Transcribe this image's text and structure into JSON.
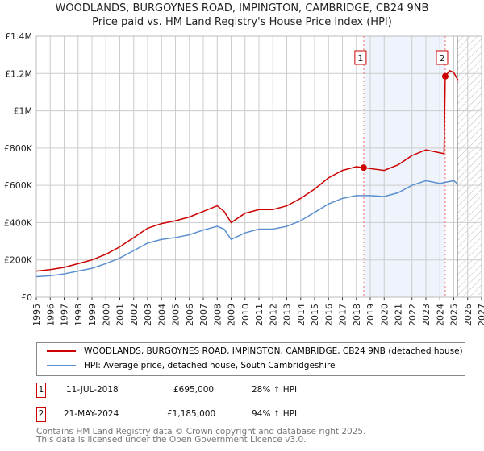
{
  "chart_data": {
    "type": "line",
    "title": "WOODLANDS, BURGOYNES ROAD, IMPINGTON, CAMBRIDGE, CB24 9NB",
    "subtitle": "Price paid vs. HM Land Registry's House Price Index (HPI)",
    "xlim": [
      1995,
      2027
    ],
    "ylim": [
      0,
      1400000
    ],
    "x_ticks": [
      "1995",
      "1996",
      "1997",
      "1998",
      "1999",
      "2000",
      "2001",
      "2002",
      "2003",
      "2004",
      "2005",
      "2006",
      "2007",
      "2008",
      "2009",
      "2010",
      "2011",
      "2012",
      "2013",
      "2014",
      "2015",
      "2016",
      "2017",
      "2018",
      "2019",
      "2020",
      "2021",
      "2022",
      "2023",
      "2024",
      "2025",
      "2026",
      "2027"
    ],
    "y_ticks": [
      {
        "v": 0,
        "label": "£0"
      },
      {
        "v": 200000,
        "label": "£200K"
      },
      {
        "v": 400000,
        "label": "£400K"
      },
      {
        "v": 600000,
        "label": "£600K"
      },
      {
        "v": 800000,
        "label": "£800K"
      },
      {
        "v": 1000000,
        "label": "£1M"
      },
      {
        "v": 1200000,
        "label": "£1.2M"
      },
      {
        "v": 1400000,
        "label": "£1.4M"
      }
    ],
    "grid": true,
    "series": [
      {
        "name": "WOODLANDS, BURGOYNES ROAD, IMPINGTON, CAMBRIDGE, CB24 9NB (detached house)",
        "color": "#cc0000",
        "x": [
          1995,
          1996,
          1997,
          1998,
          1999,
          2000,
          2001,
          2002,
          2003,
          2004,
          2005,
          2006,
          2007,
          2008,
          2008.5,
          2009,
          2010,
          2011,
          2012,
          2013,
          2014,
          2015,
          2016,
          2017,
          2018,
          2018.53,
          2019,
          2020,
          2021,
          2022,
          2023,
          2024.3,
          2024.39,
          2024.7,
          2025,
          2025.3
        ],
        "y": [
          140000,
          148000,
          160000,
          180000,
          200000,
          230000,
          270000,
          320000,
          370000,
          395000,
          410000,
          430000,
          460000,
          490000,
          460000,
          400000,
          450000,
          470000,
          470000,
          490000,
          530000,
          580000,
          640000,
          680000,
          700000,
          695000,
          690000,
          680000,
          710000,
          760000,
          790000,
          770000,
          1185000,
          1215000,
          1205000,
          1165000
        ]
      },
      {
        "name": "HPI: Average price, detached house, South Cambridgeshire",
        "color": "#5b8fd0",
        "x": [
          1995,
          1996,
          1997,
          1998,
          1999,
          2000,
          2001,
          2002,
          2003,
          2004,
          2005,
          2006,
          2007,
          2008,
          2008.5,
          2009,
          2010,
          2011,
          2012,
          2013,
          2014,
          2015,
          2016,
          2017,
          2018,
          2019,
          2020,
          2021,
          2022,
          2023,
          2024,
          2025,
          2025.3
        ],
        "y": [
          110000,
          115000,
          125000,
          140000,
          155000,
          180000,
          210000,
          250000,
          290000,
          310000,
          320000,
          335000,
          360000,
          380000,
          365000,
          310000,
          345000,
          365000,
          365000,
          380000,
          410000,
          455000,
          500000,
          530000,
          545000,
          545000,
          540000,
          560000,
          600000,
          625000,
          610000,
          625000,
          605000
        ]
      }
    ],
    "annotations": [
      {
        "id": "1",
        "x": 2018.53,
        "y": 695000,
        "date": "11-JUL-2018",
        "price": "£695,000",
        "hpi": "28% ↑ HPI"
      },
      {
        "id": "2",
        "x": 2024.39,
        "y": 1185000,
        "date": "21-MAY-2024",
        "price": "£1,185,000",
        "hpi": "94% ↑ HPI"
      }
    ],
    "forecast_start": 2025.26,
    "legend_position": "below"
  },
  "footer": [
    "Contains HM Land Registry data © Crown copyright and database right 2025.",
    "This data is licensed under the Open Government Licence v3.0."
  ]
}
